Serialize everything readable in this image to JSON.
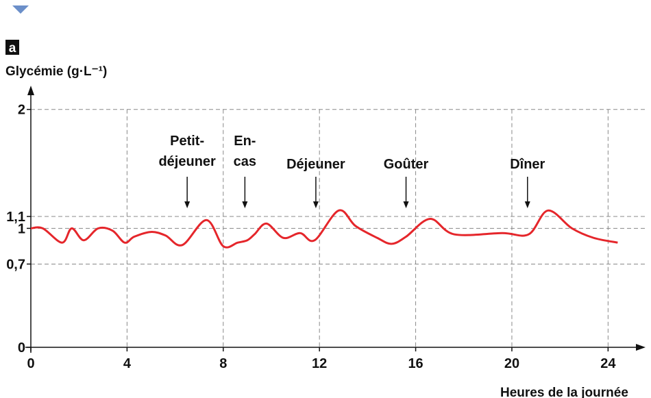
{
  "chart_data": {
    "type": "line",
    "panel_label": "a",
    "y_label": "Glycémie (g·L⁻¹)",
    "x_label": "Heures de la journée",
    "x": [
      0,
      0.5,
      1.3,
      1.7,
      2.2,
      2.8,
      3.4,
      3.9,
      4.3,
      5,
      5.6,
      6.3,
      7.3,
      8,
      8.6,
      9,
      9.3,
      9.8,
      10.5,
      11.2,
      11.8,
      12.8,
      13.5,
      14.4,
      15,
      15.6,
      16.6,
      17.6,
      19.6,
      20.7,
      21.5,
      22.5,
      23.4,
      24.4
    ],
    "series": [
      {
        "color": "#e5262b",
        "values": [
          1,
          1.0,
          0.88,
          1.0,
          0.9,
          1.0,
          0.98,
          0.88,
          0.93,
          0.97,
          0.94,
          0.86,
          1.07,
          0.85,
          0.88,
          0.9,
          0.95,
          1.04,
          0.92,
          0.96,
          0.9,
          1.15,
          1.02,
          0.92,
          0.87,
          0.93,
          1.08,
          0.95,
          0.96,
          0.95,
          1.15,
          1.0,
          0.92,
          0.88
        ]
      }
    ],
    "xlim": [
      0,
      25.5
    ],
    "ylim": [
      0,
      2.2
    ],
    "xticks": [
      0,
      4,
      8,
      12,
      16,
      20,
      24
    ],
    "yticks": [
      0,
      {
        "value": 0.7,
        "label": "0,7"
      },
      1,
      {
        "value": 1.1,
        "label": "1,1"
      },
      2
    ],
    "grid": true,
    "annotations": [
      {
        "text": [
          "Petit-",
          "déjeuner"
        ],
        "x": 6.5
      },
      {
        "text": [
          "En-",
          "cas"
        ],
        "x": 8.9
      },
      {
        "text": [
          "Déjeuner"
        ],
        "x": 11.85
      },
      {
        "text": [
          "Goûter"
        ],
        "x": 15.6
      },
      {
        "text": [
          "Dîner"
        ],
        "x": 20.65
      }
    ]
  }
}
